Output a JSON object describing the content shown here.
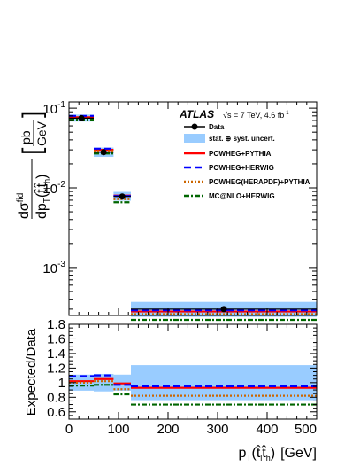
{
  "chart_data": [
    {
      "type": "line",
      "scale": "log",
      "ylabel_num": "dσ",
      "ylabel_num_sup": "fid",
      "ylabel_den": "dp",
      "ylabel_den_sub": "T",
      "ylabel_den_arg": "(t̂",
      "ylabel_den_sub2": "l",
      "ylabel_den_arg2": "t̂",
      "ylabel_den_sub3": "h",
      "ylabel_den_close": ")",
      "unit_num": "pb",
      "unit_den": "GeV",
      "xlim": [
        0,
        500
      ],
      "ylim": [
        0.00025,
        0.12
      ],
      "yticks": [
        {
          "label_base": "10",
          "label_exp": "-1",
          "value": 0.1
        },
        {
          "label_base": "10",
          "label_exp": "-2",
          "value": 0.01
        },
        {
          "label_base": "10",
          "label_exp": "-3",
          "value": 0.001
        }
      ],
      "bins": [
        [
          0,
          50
        ],
        [
          50,
          90
        ],
        [
          90,
          125
        ],
        [
          125,
          500
        ]
      ],
      "data": {
        "x": [
          25,
          70,
          107.5,
          312.5
        ],
        "y": [
          0.075,
          0.028,
          0.0078,
          0.0003
        ]
      },
      "uncertainty": {
        "low": [
          0.068,
          0.0245,
          0.0069,
          0.00024
        ],
        "high": [
          0.083,
          0.032,
          0.0089,
          0.00037
        ]
      },
      "series": [
        {
          "name": "POWHEG+PYTHIA",
          "color": "#ff0000",
          "dash": "solid",
          "values": [
            0.077,
            0.03,
            0.008,
            0.00028
          ]
        },
        {
          "name": "POWHEG+HERWIG",
          "color": "#0000ff",
          "dash": "dash",
          "values": [
            0.08,
            0.031,
            0.0079,
            0.00029
          ]
        },
        {
          "name": "POWHEG(HERAPDF)+PYTHIA",
          "color": "#cc6600",
          "dash": "dot",
          "values": [
            0.074,
            0.029,
            0.0072,
            0.00026
          ]
        },
        {
          "name": "MC@NLO+HERWIG",
          "color": "#006600",
          "dash": "dashdot",
          "values": [
            0.072,
            0.027,
            0.0066,
            0.00022
          ]
        }
      ],
      "legend": {
        "atlas": "ATLAS",
        "energy": "√s = 7 TeV, 4.6 fb",
        "energy_sup": "-1",
        "data_label": "Data",
        "band_label": "stat. ⊕ syst. uncert."
      },
      "legend_placement": "top-right",
      "band_color": "#99ccff"
    },
    {
      "type": "line",
      "ylabel": "Expected/Data",
      "xlabel_prefix": "p",
      "xlabel_sub": "T",
      "xlabel_arg": "(t̂",
      "xlabel_sub2": "l",
      "xlabel_arg2": "t̂",
      "xlabel_sub3": "h",
      "xlabel_close": ")",
      "xlabel_unit": "[GeV]",
      "xlim": [
        0,
        500
      ],
      "ylim": [
        0.5,
        1.8
      ],
      "xticks": [
        "0",
        "100",
        "200",
        "300",
        "400",
        "500"
      ],
      "yticks": [
        "0.6",
        "0.8",
        "1",
        "1.2",
        "1.4",
        "1.6",
        "1.8"
      ],
      "bins": [
        [
          0,
          50
        ],
        [
          50,
          90
        ],
        [
          90,
          125
        ],
        [
          125,
          500
        ]
      ],
      "band": {
        "low": [
          0.89,
          0.88,
          0.89,
          0.76
        ],
        "high": [
          1.11,
          1.12,
          1.11,
          1.24
        ]
      },
      "series": [
        {
          "name": "POWHEG+PYTHIA",
          "values": [
            1.02,
            1.05,
            0.99,
            0.93
          ]
        },
        {
          "name": "POWHEG+HERWIG",
          "values": [
            1.09,
            1.1,
            0.97,
            0.95
          ]
        },
        {
          "name": "POWHEG(HERAPDF)+PYTHIA",
          "values": [
            1.0,
            1.02,
            0.91,
            0.82
          ]
        },
        {
          "name": "MC@NLO+HERWIG",
          "values": [
            0.96,
            0.97,
            0.84,
            0.7
          ]
        }
      ]
    }
  ]
}
